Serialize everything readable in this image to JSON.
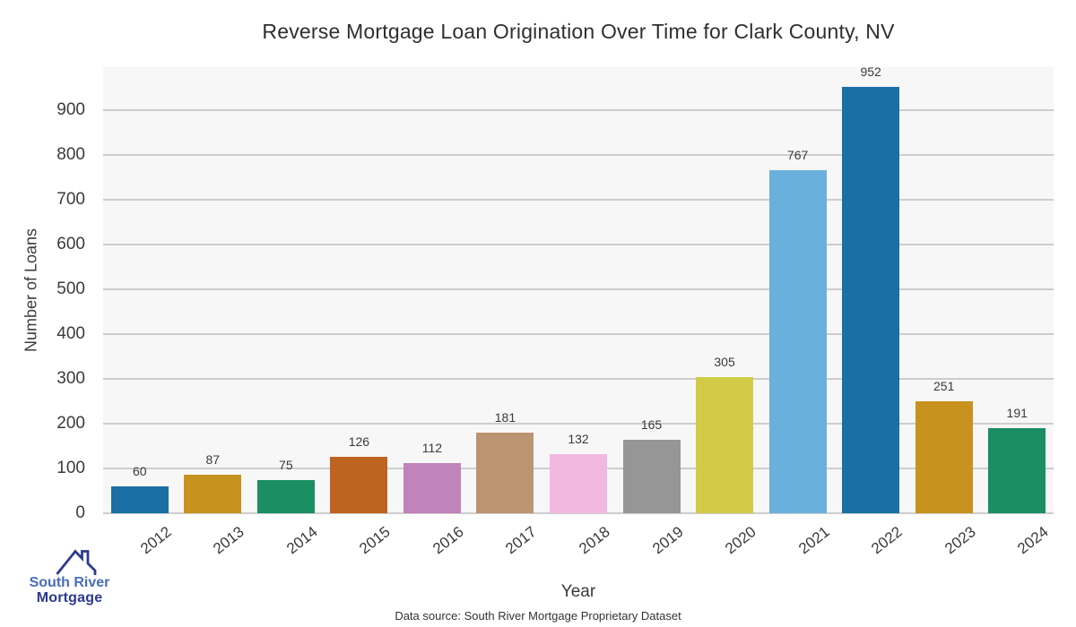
{
  "chart_data": {
    "type": "bar",
    "title": "Reverse Mortgage Loan Origination Over Time for Clark County, NV",
    "xlabel": "Year",
    "ylabel": "Number of Loans",
    "categories": [
      "2012",
      "2013",
      "2014",
      "2015",
      "2016",
      "2017",
      "2018",
      "2019",
      "2020",
      "2021",
      "2022",
      "2023",
      "2024"
    ],
    "values": [
      60,
      87,
      75,
      126,
      112,
      181,
      132,
      165,
      305,
      767,
      952,
      251,
      191
    ],
    "bar_colors": [
      "#1a6fa4",
      "#c8921f",
      "#1b8e63",
      "#bf6321",
      "#c183bb",
      "#bd9472",
      "#f2b8df",
      "#969696",
      "#d2cb48",
      "#6ab0dc",
      "#1a6fa4",
      "#c8921f",
      "#1b8e63"
    ],
    "ylim": [
      0,
      996
    ],
    "yticks": [
      0,
      100,
      200,
      300,
      400,
      500,
      600,
      700,
      800,
      900
    ],
    "grid": true,
    "legend": false,
    "plot_bg": "#f7f7f7",
    "gridline_color": "#cdcdcd"
  },
  "footer": {
    "source_text": "Data source: South River Mortgage Proprietary Dataset"
  },
  "logo": {
    "line1": "South River",
    "line2": "Mortgage",
    "icon": "house-roof-icon",
    "line1_color": "#4a6db9",
    "line2_color": "#2b3a8f",
    "icon_color": "#2e3a8c"
  }
}
